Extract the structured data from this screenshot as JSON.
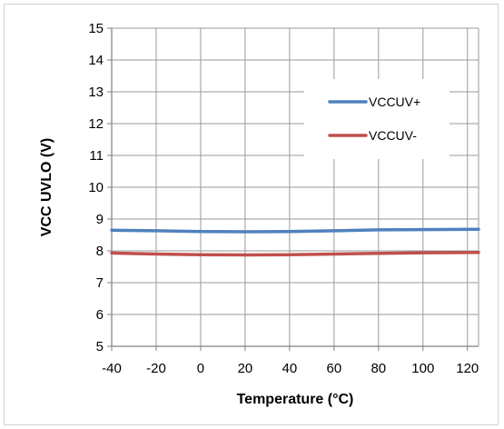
{
  "chart_data": {
    "type": "line",
    "title": "",
    "xlabel": "Temperature (°C)",
    "ylabel": "VCC UVLO (V)",
    "xlim": [
      -40,
      125
    ],
    "ylim": [
      5,
      15
    ],
    "x_ticks": [
      -40,
      -20,
      0,
      20,
      40,
      60,
      80,
      100,
      120
    ],
    "y_ticks": [
      5,
      6,
      7,
      8,
      9,
      10,
      11,
      12,
      13,
      14,
      15
    ],
    "grid": true,
    "legend_position": "upper-right",
    "series": [
      {
        "name": "VCCUV+",
        "color": "#4f81bd",
        "x": [
          -40,
          -20,
          0,
          20,
          40,
          60,
          80,
          100,
          125
        ],
        "y": [
          8.65,
          8.63,
          8.61,
          8.6,
          8.61,
          8.63,
          8.66,
          8.67,
          8.68
        ]
      },
      {
        "name": "VCCUV-",
        "color": "#c0504d",
        "x": [
          -40,
          -20,
          0,
          20,
          40,
          60,
          80,
          100,
          125
        ],
        "y": [
          7.93,
          7.9,
          7.88,
          7.87,
          7.88,
          7.9,
          7.92,
          7.94,
          7.95
        ]
      }
    ]
  }
}
